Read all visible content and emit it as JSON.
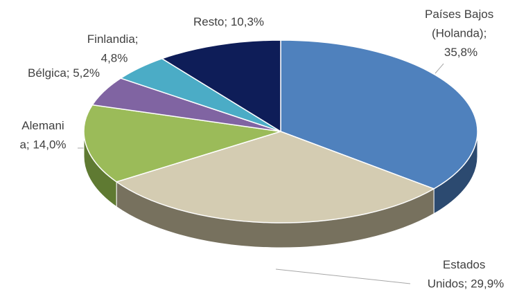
{
  "chart_data": {
    "type": "pie",
    "values": [
      35.8,
      29.9,
      14.0,
      5.2,
      4.8,
      10.3
    ],
    "value_labels": [
      "Países Bajos (Holanda); 35,8%",
      "Estados Unidos; 29,9%",
      "Alemania; 14,0%",
      "Bélgica; 5,2%",
      "Finlandia; 4,8%",
      "Resto; 10,3%"
    ],
    "colors": [
      "#4f81bd",
      "#d4ccb2",
      "#9bbb59",
      "#8064a2",
      "#4bacc6",
      "#0e1d58"
    ],
    "side_colors": [
      "#2c4a70",
      "#77715e",
      "#5f7a32",
      "#4d3a66",
      "#2c6f82",
      "#08123a"
    ]
  }
}
